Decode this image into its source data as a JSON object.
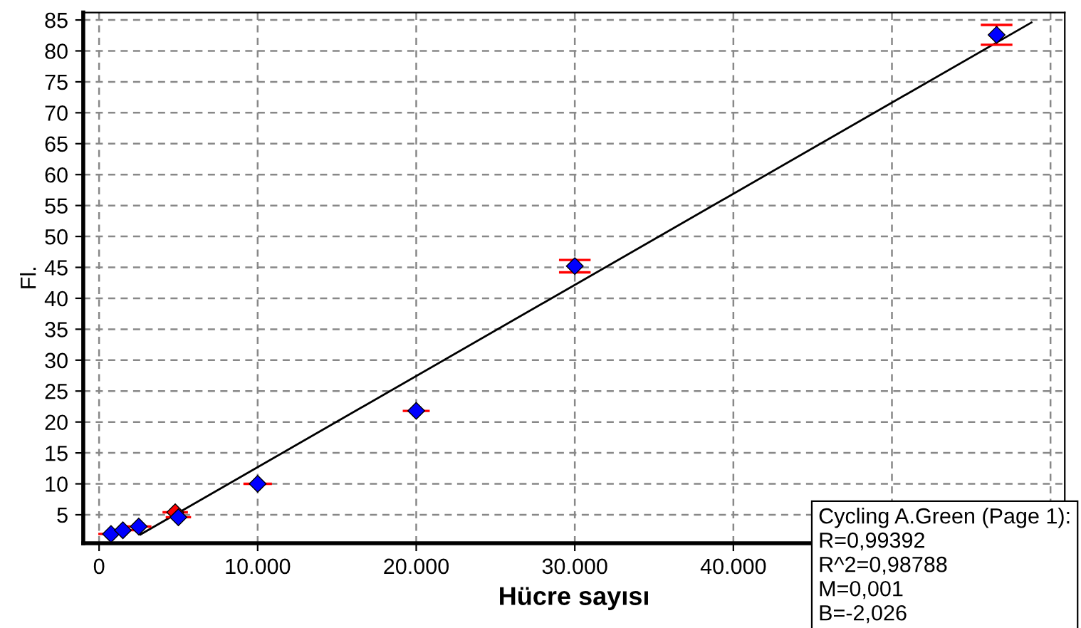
{
  "chart_data": {
    "type": "scatter",
    "xlabel": "Hücre sayısı",
    "ylabel": "Fl.",
    "xlim": [
      -1000,
      60900
    ],
    "ylim": [
      0.4,
      86.2
    ],
    "xticks": [
      {
        "value": 0,
        "label": "0"
      },
      {
        "value": 10000,
        "label": "10.000"
      },
      {
        "value": 20000,
        "label": "20.000"
      },
      {
        "value": 30000,
        "label": "30.000"
      },
      {
        "value": 40000,
        "label": "40.000"
      },
      {
        "value": 50000,
        "label": null
      },
      {
        "value": 60000,
        "label": null
      }
    ],
    "yticks": [
      5,
      10,
      15,
      20,
      25,
      30,
      35,
      40,
      45,
      50,
      55,
      60,
      65,
      70,
      75,
      80,
      85
    ],
    "grid": true,
    "legend": false,
    "series": [
      {
        "marker": "diamond",
        "colors": [
          "#0000ff",
          "#0000ff",
          "#0000ff",
          "#0000ff",
          "#ff0000",
          "#0000ff",
          "#0000ff",
          "#0000ff",
          "#0000ff",
          "#0000ff"
        ],
        "x": [
          750,
          1500,
          2500,
          4500,
          4800,
          5000,
          10000,
          20000,
          30000,
          56600
        ],
        "values": [
          1.9,
          2.5,
          3.1,
          null,
          5.4,
          4.6,
          10.0,
          21.8,
          45.2,
          82.6
        ],
        "errors": [
          null,
          null,
          null,
          null,
          null,
          null,
          null,
          null,
          1.0,
          1.6
        ],
        "xerrors": [
          800,
          800,
          800,
          null,
          800,
          800,
          900,
          850,
          null,
          null
        ]
      },
      {
        "type": "line",
        "color": "#000000",
        "line_style": "solid",
        "x": [
          2600,
          58800
        ],
        "values": [
          1.8,
          84.6
        ]
      }
    ],
    "annotations": [
      "Cycling A.Green (Page 1):\nR=0,99392\nR^2=0,98788\nM=0,001\nB=-2,026"
    ]
  }
}
